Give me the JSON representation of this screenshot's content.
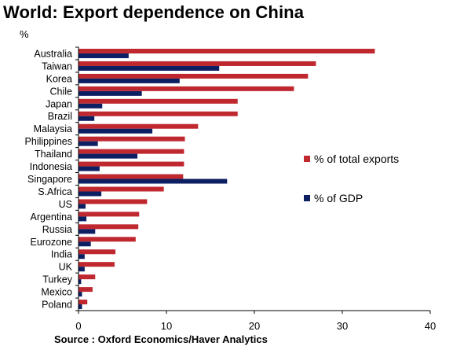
{
  "title": "World: Export dependence on China",
  "unit": "%",
  "source": "Source : Oxford Economics/Haver Analytics",
  "colors": {
    "exports": "#C0282F",
    "gdp": "#0D1F63"
  },
  "chart_data": {
    "type": "bar",
    "orientation": "horizontal",
    "title": "World: Export dependence on China",
    "xlabel": "",
    "ylabel": "%",
    "xlim": [
      0,
      40
    ],
    "xticks": [
      0,
      10,
      20,
      30,
      40
    ],
    "grid": false,
    "legend_position": "right",
    "categories": [
      "Australia",
      "Taiwan",
      "Korea",
      "Chile",
      "Japan",
      "Brazil",
      "Malaysia",
      "Philippines",
      "Thailand",
      "Indonesia",
      "Singapore",
      "S.Africa",
      "US",
      "Argentina",
      "Russia",
      "Eurozone",
      "India",
      "UK",
      "Turkey",
      "Mexico",
      "Poland"
    ],
    "series": [
      {
        "name": "% of total exports",
        "values": [
          33.7,
          27.0,
          26.1,
          24.5,
          18.1,
          18.1,
          13.6,
          12.1,
          12.0,
          12.0,
          11.9,
          9.7,
          7.8,
          6.9,
          6.8,
          6.5,
          4.2,
          4.1,
          1.9,
          1.6,
          1.0
        ]
      },
      {
        "name": "% of GDP",
        "values": [
          5.7,
          16.0,
          11.5,
          7.2,
          2.7,
          1.8,
          8.4,
          2.2,
          6.7,
          2.4,
          16.9,
          2.6,
          0.8,
          0.9,
          1.9,
          1.4,
          0.7,
          0.7,
          0.3,
          0.4,
          0.4
        ]
      }
    ]
  }
}
